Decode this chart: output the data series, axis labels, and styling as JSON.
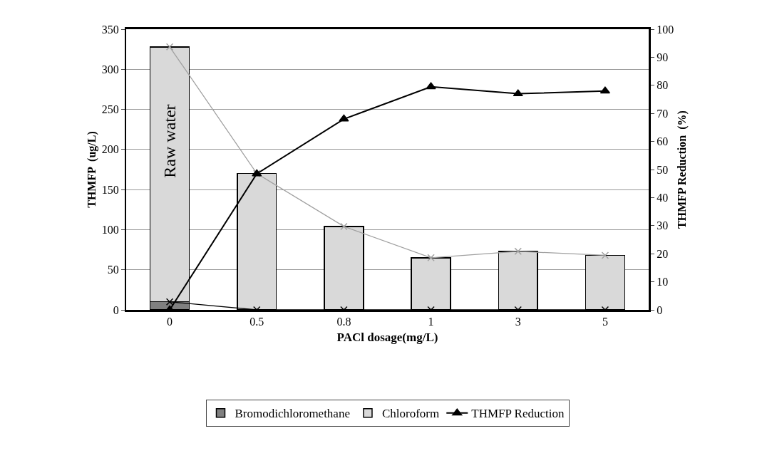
{
  "chart_data": {
    "type": "bar",
    "stacked": true,
    "categories": [
      "0",
      "0.5",
      "0.8",
      "1",
      "3",
      "5"
    ],
    "xlabel": "PACl dosage(mg/L)",
    "ylabel": "THMFP  (ug/L)",
    "y2label": "THMFP Reduction  (%)",
    "series": [
      {
        "name": "Bromodichloromethane",
        "color": "#808080",
        "values": [
          10,
          0,
          0,
          0,
          0,
          0
        ]
      },
      {
        "name": "Chloroform",
        "color": "#d9d9d9",
        "values": [
          318,
          170,
          104,
          65,
          73,
          68
        ]
      },
      {
        "type": "line",
        "color": "#a0a0a0",
        "marker": "cross",
        "values": [
          328,
          170,
          104,
          65,
          73,
          68
        ]
      },
      {
        "type": "line",
        "color": "#000000",
        "marker": "cross",
        "values": [
          10,
          0,
          0,
          0,
          0,
          0
        ]
      },
      {
        "name": "THMFP Reduction",
        "type": "line",
        "axis": "y2",
        "color": "#000000",
        "marker": "triangle",
        "values": [
          0,
          48.5,
          68,
          79.5,
          77,
          78
        ]
      }
    ],
    "annotations": [
      "Raw water"
    ],
    "ylim": [
      0,
      350
    ],
    "yticks": [
      0,
      50,
      100,
      150,
      200,
      250,
      300,
      350
    ],
    "y2lim": [
      0,
      100
    ],
    "y2ticks": [
      0,
      10,
      20,
      30,
      40,
      50,
      60,
      70,
      80,
      90,
      100
    ],
    "grid": "y",
    "legend": "bottom"
  }
}
